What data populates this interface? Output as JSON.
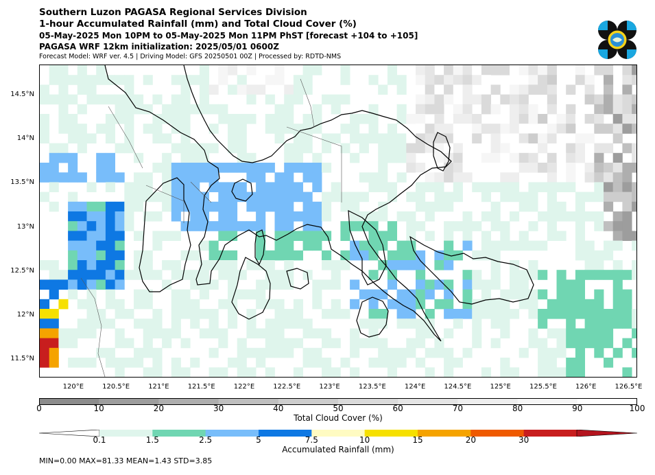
{
  "header": {
    "line1": "Southern Luzon PAGASA Regional Services Division",
    "line2": "1-hour Accumulated Rainfall (mm) and Total Cloud Cover (%)",
    "line3": "05-May-2025 Mon 10PM to 05-May-2025 Mon 11PM PhST [forecast +104 to +105]",
    "line4": "PAGASA WRF 12km initialization: 2025/05/01 0600Z",
    "line5": "Forecast Model: WRF ver. 4.5 | Driving Model: GFS 20250501 00Z | Processed by: RDTD-NMS"
  },
  "map": {
    "lat_range": [
      11.3,
      14.85
    ],
    "lon_range": [
      119.6,
      126.6
    ],
    "lat_ticks": [
      "14.5°N",
      "14°N",
      "13.5°N",
      "13°N",
      "12.5°N",
      "12°N",
      "11.5°N"
    ],
    "lat_values": [
      14.5,
      14.0,
      13.5,
      13.0,
      12.5,
      12.0,
      11.5
    ],
    "lon_ticks": [
      "120°E",
      "120.5°E",
      "121°E",
      "121.5°E",
      "122°E",
      "122.5°E",
      "123°E",
      "123.5°E",
      "124°E",
      "124.5°E",
      "125°E",
      "125.5°E",
      "126°E",
      "126.5°E"
    ],
    "lon_values": [
      120.0,
      120.5,
      121.0,
      121.5,
      122.0,
      122.5,
      123.0,
      123.5,
      124.0,
      124.5,
      125.0,
      125.5,
      126.0,
      126.5
    ]
  },
  "cloud_colorbar": {
    "title": "Total Cloud Cover (%)",
    "ticks": [
      "0",
      "10",
      "20",
      "30",
      "40",
      "50",
      "60",
      "70",
      "80",
      "90",
      "100"
    ],
    "colors": [
      "#8c8c8c",
      "#9d9d9d",
      "#aeaeae",
      "#bfbfbf",
      "#cdcdcd",
      "#dadada",
      "#e5e5e5",
      "#eeeeee",
      "#f6f6f6",
      "#ffffff"
    ]
  },
  "rain_colorbar": {
    "title": "Accumulated Rainfall (mm)",
    "ticks": [
      "0.1",
      "1.5",
      "2.5",
      "5",
      "7.5",
      "10",
      "15",
      "20",
      "30"
    ],
    "colors": [
      "#dff5ec",
      "#70d6b2",
      "#78bdfa",
      "#0e78e3",
      "#fffbc2",
      "#f6e000",
      "#f5a300",
      "#ef5a00",
      "#c81e1e"
    ],
    "under_color": "#ffffff",
    "over_color": "#b4141e"
  },
  "stats": {
    "text": "MIN=0.00   MAX=81.33   MEAN=1.43   STD=3.85"
  },
  "logo": {
    "icon": "pagasa-logo-icon"
  }
}
